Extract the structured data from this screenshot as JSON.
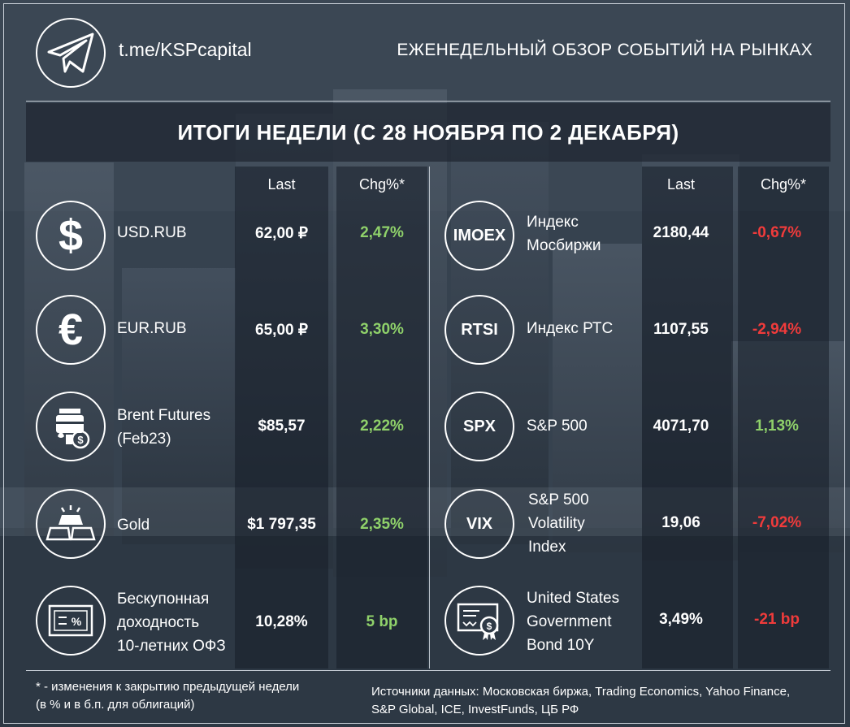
{
  "header": {
    "handle": "t.me/KSPcapital",
    "title": "ЕЖЕНЕДЕЛЬНЫЙ ОБЗОР СОБЫТИЙ НА РЫНКАХ"
  },
  "week_title": "ИТОГИ НЕДЕЛИ (С 28 НОЯБРЯ ПО 2 ДЕКАБРЯ)",
  "columns": {
    "last": "Last",
    "chg": "Chg%*"
  },
  "colors": {
    "positive": "#8fd16a",
    "negative": "#f03b3b"
  },
  "left": [
    {
      "icon": "dollar-icon",
      "name": [
        "USD.RUB"
      ],
      "last": "62,00 ₽",
      "chg": "2,47%",
      "sign": "pos"
    },
    {
      "icon": "euro-icon",
      "name": [
        "EUR.RUB"
      ],
      "last": "65,00 ₽",
      "chg": "3,30%",
      "sign": "pos"
    },
    {
      "icon": "oil-barrel-icon",
      "name": [
        "Brent Futures",
        "(Feb23)"
      ],
      "last": "$85,57",
      "chg": "2,22%",
      "sign": "pos"
    },
    {
      "icon": "gold-bar-icon",
      "name": [
        "Gold"
      ],
      "last": "$1 797,35",
      "chg": "2,35%",
      "sign": "pos"
    },
    {
      "icon": "bond-certificate-icon",
      "name": [
        "Бескупонная",
        "доходность",
        "10-летних ОФЗ"
      ],
      "last": "10,28%",
      "chg": "5 bp",
      "sign": "pos"
    }
  ],
  "right": [
    {
      "icon_text": "IMOEX",
      "name": [
        "Индекс",
        "Мосбиржи"
      ],
      "last": "2180,44",
      "chg": "-0,67%",
      "sign": "neg"
    },
    {
      "icon_text": "RTSI",
      "name": [
        "Индекс РТС"
      ],
      "last": "1107,55",
      "chg": "-2,94%",
      "sign": "neg"
    },
    {
      "icon_text": "SPX",
      "name": [
        "S&P 500"
      ],
      "last": "4071,70",
      "chg": "1,13%",
      "sign": "pos"
    },
    {
      "icon_text": "VIX",
      "name": [
        "S&P 500",
        "Volatility",
        "Index"
      ],
      "last": "19,06",
      "chg": "-7,02%",
      "sign": "neg"
    },
    {
      "icon": "certificate-icon",
      "name": [
        "United States",
        "Government",
        "Bond 10Y"
      ],
      "last": "3,49%",
      "chg": "-21 bp",
      "sign": "neg"
    }
  ],
  "footnote": {
    "left_line1": "* - изменения к закрытию предыдущей недели",
    "left_line2": "(в % и в б.п. для облигаций)",
    "right_line1": "Источники данных: Московская биржа, Trading Economics, Yahoo Finance,",
    "right_line2": "S&P Global, ICE, InvestFunds, ЦБ РФ"
  }
}
